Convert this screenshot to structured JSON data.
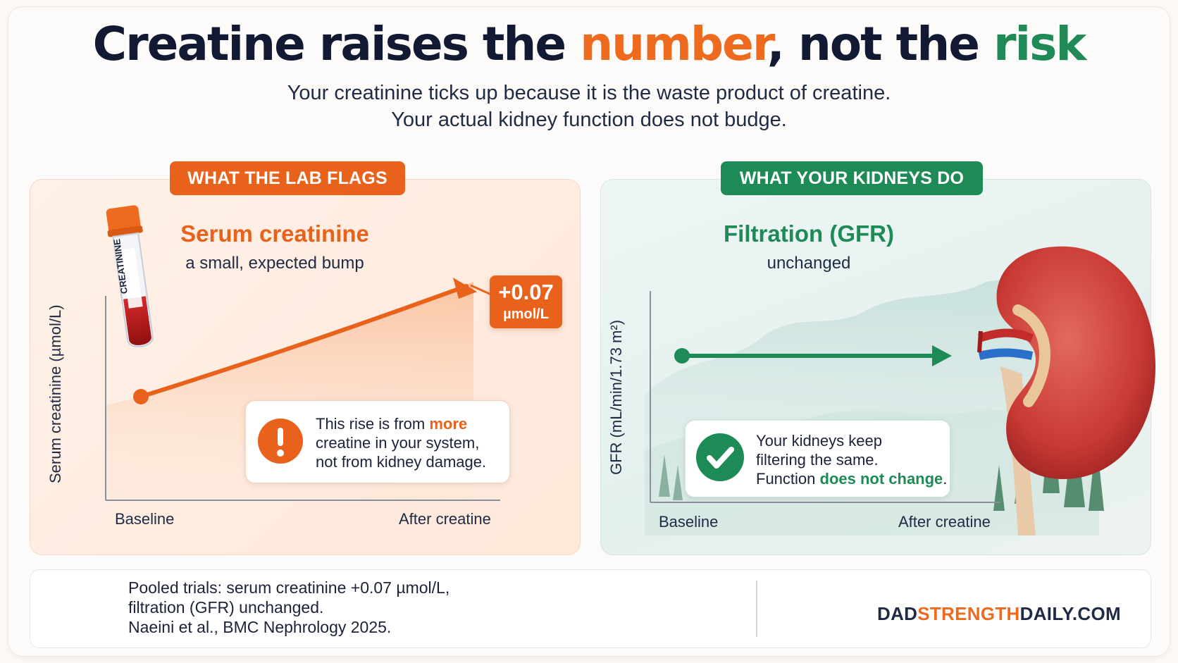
{
  "title": {
    "part1": "Creatine raises the ",
    "highlight1": "number",
    "part2": ", not the ",
    "highlight2": "risk"
  },
  "subtitle": {
    "line1": "Your creatinine ticks up because it is the waste product of creatine.",
    "line2": "Your actual kidney function does not budge."
  },
  "left_panel": {
    "pill": "WHAT THE LAB FLAGS",
    "title": "Serum creatinine",
    "subtitle": "a small, expected bump",
    "tube_label": "CREATININE",
    "y_axis_label": "Serum creatinine (µmol/L)",
    "x_ticks": [
      "Baseline",
      "After creatine"
    ],
    "badge_value": "+0.07",
    "badge_unit": "µmol/L",
    "callout": {
      "pre": "This rise is from ",
      "highlight": "more",
      "line2": "creatine in your system,",
      "line3": "not from kidney damage."
    },
    "colors": {
      "accent": "#e8621c"
    }
  },
  "right_panel": {
    "pill": "WHAT YOUR KIDNEYS DO",
    "title": "Filtration (GFR)",
    "subtitle": "unchanged",
    "y_axis_label": "GFR (mL/min/1.73 m²)",
    "x_ticks": [
      "Baseline",
      "After creatine"
    ],
    "callout": {
      "line1": "Your kidneys keep",
      "line2": "filtering the same.",
      "pre3": "Function ",
      "highlight": "does not change",
      "post3": "."
    },
    "colors": {
      "accent": "#1e8a55"
    }
  },
  "chart_data": [
    {
      "type": "line",
      "title": "Serum creatinine",
      "ylabel": "Serum creatinine (µmol/L)",
      "categories": [
        "Baseline",
        "After creatine"
      ],
      "series": [
        {
          "values": [
            0,
            0.07
          ]
        }
      ],
      "annotation": "+0.07 µmol/L"
    },
    {
      "type": "line",
      "title": "Filtration (GFR)",
      "ylabel": "GFR (mL/min/1.73 m²)",
      "categories": [
        "Baseline",
        "After creatine"
      ],
      "series": [
        {
          "values": [
            0,
            0
          ]
        }
      ]
    }
  ],
  "footer": {
    "line1": "Pooled trials: serum creatinine +0.07 µmol/L,",
    "line2": "filtration (GFR) unchanged.",
    "line3": "Naeini et al., BMC Nephrology 2025.",
    "icon": "microscope-icon",
    "brand_part1": "DAD",
    "brand_part2": "STRENGTH",
    "brand_part3": "DAILY.COM",
    "brand_icon": "strongman-logo"
  }
}
